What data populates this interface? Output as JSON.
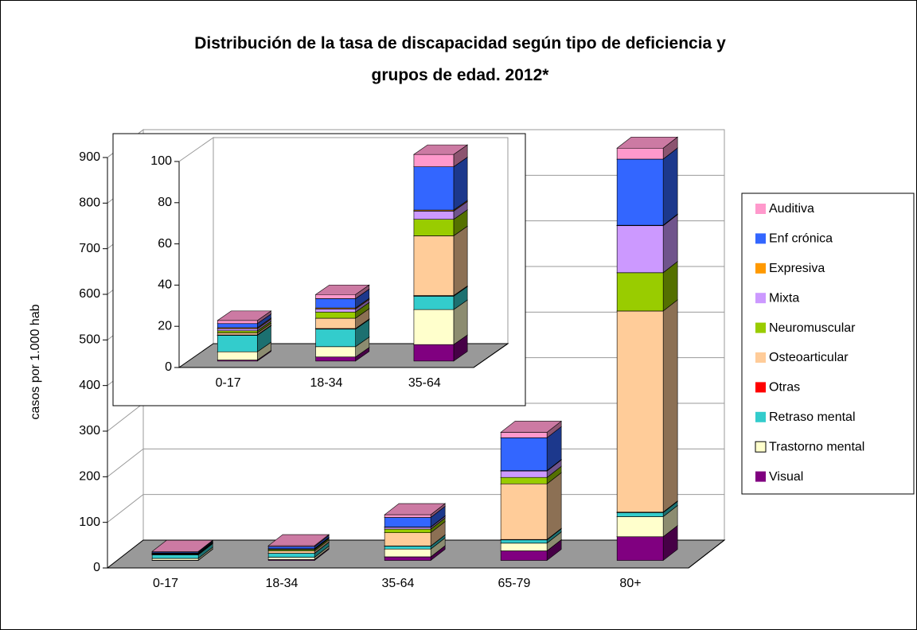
{
  "chart_data": [
    {
      "type": "bar3d_stacked",
      "title": "Distribución de la tasa de discapacidad según tipo de deficiencia y grupos de edad. 2012*",
      "ylabel": "casos por 1.000 hab",
      "categories": [
        "0-17",
        "18-34",
        "35-64",
        "65-79",
        "80+"
      ],
      "ylim": [
        0,
        900
      ],
      "yticks": [
        0,
        100,
        200,
        300,
        400,
        500,
        600,
        700,
        800,
        900
      ],
      "grid": true,
      "legend": "right",
      "series": [
        {
          "name": "Auditiva",
          "color": "#ff99cc",
          "values": [
            1.5,
            2,
            6,
            12,
            24
          ]
        },
        {
          "name": "Enf crónica",
          "color": "#3366ff",
          "values": [
            2,
            4.5,
            21,
            72,
            145
          ]
        },
        {
          "name": "Expresiva",
          "color": "#ff9900",
          "values": [
            0.5,
            0.5,
            0.5,
            1,
            1
          ]
        },
        {
          "name": "Mixta",
          "color": "#cc99ff",
          "values": [
            1,
            1.5,
            4,
            14,
            103
          ]
        },
        {
          "name": "Neuromuscular",
          "color": "#99cc00",
          "values": [
            1,
            3,
            8,
            14,
            84
          ]
        },
        {
          "name": "Osteoarticular",
          "color": "#ffcc99",
          "values": [
            1,
            5,
            29,
            122,
            441
          ]
        },
        {
          "name": "Otras",
          "color": "#ff0000",
          "values": [
            0.2,
            0.3,
            0.3,
            1,
            1
          ]
        },
        {
          "name": "Retraso mental",
          "color": "#33cccc",
          "values": [
            8,
            8.5,
            6.5,
            7,
            9
          ]
        },
        {
          "name": "Trastorno mental",
          "color": "#ffffcc",
          "values": [
            4,
            5,
            17,
            17,
            44
          ]
        },
        {
          "name": "Visual",
          "color": "#800080",
          "values": [
            0.5,
            2,
            8,
            21,
            52
          ]
        }
      ]
    },
    {
      "type": "bar3d_stacked",
      "categories": [
        "0-17",
        "18-34",
        "35-64"
      ],
      "ylim": [
        0,
        100
      ],
      "yticks": [
        0,
        20,
        40,
        60,
        80,
        100
      ],
      "grid": false,
      "series": [
        {
          "values": [
            1.5,
            2,
            6
          ]
        },
        {
          "values": [
            2,
            4.5,
            21
          ]
        },
        {
          "values": [
            0.5,
            0.5,
            0.5
          ]
        },
        {
          "values": [
            1,
            1.5,
            4
          ]
        },
        {
          "values": [
            1,
            3,
            8
          ]
        },
        {
          "values": [
            1,
            5,
            29
          ]
        },
        {
          "values": [
            0.2,
            0.3,
            0.3
          ]
        },
        {
          "values": [
            8,
            8.5,
            6.5
          ]
        },
        {
          "values": [
            4,
            5,
            17
          ]
        },
        {
          "values": [
            0.5,
            2,
            8
          ]
        }
      ]
    }
  ]
}
